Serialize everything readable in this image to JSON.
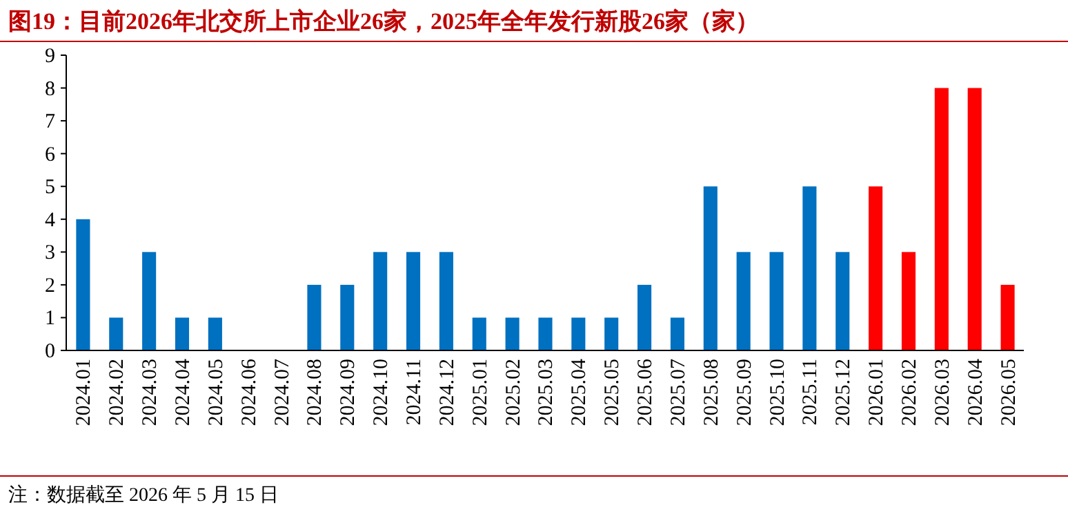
{
  "chart_data": {
    "type": "bar",
    "title": "图19：目前2026年北交所上市企业26家，2025年全年发行新股26家（家）",
    "categories": [
      "2024.01",
      "2024.02",
      "2024.03",
      "2024.04",
      "2024.05",
      "2024.06",
      "2024.07",
      "2024.08",
      "2024.09",
      "2024.10",
      "2024.11",
      "2024.12",
      "2025.01",
      "2025.02",
      "2025.03",
      "2025.04",
      "2025.05",
      "2025.06",
      "2025.07",
      "2025.08",
      "2025.09",
      "2025.10",
      "2025.11",
      "2025.12",
      "2026.01",
      "2026.02",
      "2026.03",
      "2026.04",
      "2026.05"
    ],
    "values": [
      4,
      1,
      3,
      1,
      1,
      0,
      0,
      2,
      2,
      3,
      3,
      3,
      1,
      1,
      1,
      1,
      1,
      2,
      1,
      5,
      3,
      3,
      5,
      3,
      5,
      3,
      8,
      8,
      2
    ],
    "colors": [
      "#0070c0",
      "#0070c0",
      "#0070c0",
      "#0070c0",
      "#0070c0",
      "#0070c0",
      "#0070c0",
      "#0070c0",
      "#0070c0",
      "#0070c0",
      "#0070c0",
      "#0070c0",
      "#0070c0",
      "#0070c0",
      "#0070c0",
      "#0070c0",
      "#0070c0",
      "#0070c0",
      "#0070c0",
      "#0070c0",
      "#0070c0",
      "#0070c0",
      "#0070c0",
      "#0070c0",
      "#ff0000",
      "#ff0000",
      "#ff0000",
      "#ff0000",
      "#ff0000"
    ],
    "ylim": [
      0,
      9
    ],
    "yticks": [
      0,
      1,
      2,
      3,
      4,
      5,
      6,
      7,
      8,
      9
    ],
    "grid": false,
    "annotations": [
      "注：数据截至 2026 年 5 月 15 日"
    ]
  }
}
